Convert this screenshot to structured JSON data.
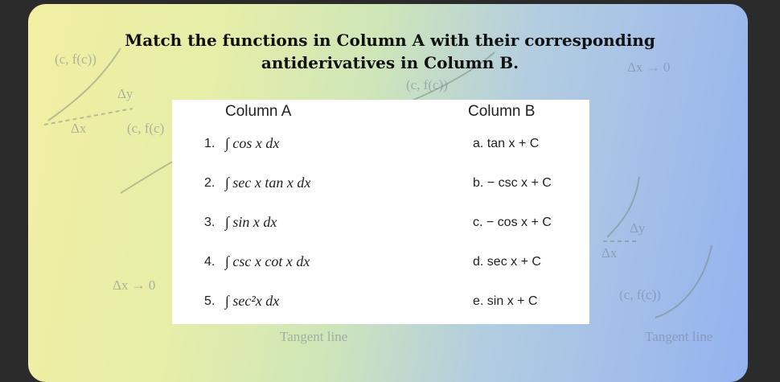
{
  "header": {
    "title_lines": [
      "Match the functions in Column A with their corresponding",
      "antiderivatives in Column B."
    ]
  },
  "table": {
    "headers": [
      "Column A",
      "Column B"
    ],
    "rows": [
      [
        "1.",
        "∫ cos x dx",
        "a. tan x + C"
      ],
      [
        "2.",
        "∫ sec x tan x dx",
        "b. − csc x + C"
      ],
      [
        "3.",
        "∫ sin x dx",
        "c. − cos x + C"
      ],
      [
        "4.",
        "∫ csc x cot x dx",
        "d. sec x + C"
      ],
      [
        "5.",
        "∫ sec²x dx",
        "e. sin x + C"
      ]
    ]
  },
  "background_labels": [
    "(c, f(c))",
    "Δy",
    "Δx",
    "(c, f(c)",
    "(c, f(c))",
    "Δx → 0",
    "Δx → 0",
    "Δy",
    "Δx",
    "(c, f(c))",
    "Tangent line",
    "Tangent line"
  ]
}
